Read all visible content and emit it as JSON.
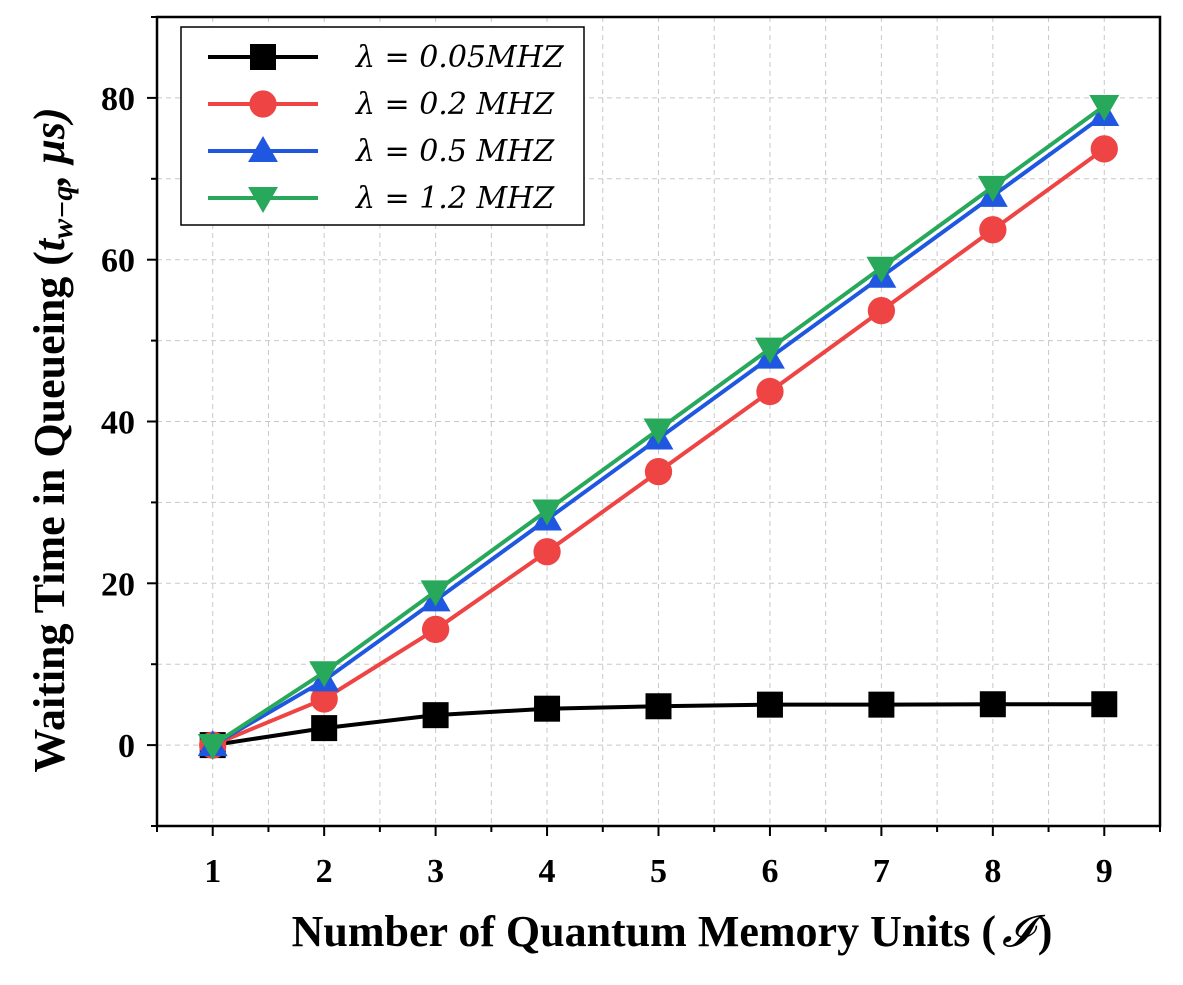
{
  "chart_data": {
    "type": "line",
    "xlabel": "Number of Quantum Memory Units (",
    "xlabel_symbol": "𝓘",
    "xlabel_close": ")",
    "ylabel": "Waiting Time in Queueing (",
    "ylabel_symbol": "t",
    "ylabel_subscript": "w−q",
    "ylabel_unit": ", μs)",
    "xlim": [
      0.5,
      9.5
    ],
    "ylim": [
      -10,
      90
    ],
    "x_ticks": [
      1,
      2,
      3,
      4,
      5,
      6,
      7,
      8,
      9
    ],
    "y_ticks": [
      0,
      20,
      40,
      60,
      80
    ],
    "grid": true,
    "legend_position": "top-left",
    "x": [
      1,
      2,
      3,
      4,
      5,
      6,
      7,
      8,
      9
    ],
    "series": [
      {
        "name": "λ = 0.05MHZ",
        "color": "#000000",
        "marker": "square",
        "values": [
          0,
          2.1,
          3.7,
          4.5,
          4.8,
          5.0,
          5.0,
          5.05,
          5.05
        ]
      },
      {
        "name": "λ = 0.2 MHZ",
        "color": "#ee4444",
        "marker": "circle",
        "values": [
          0,
          5.7,
          14.3,
          23.9,
          33.8,
          43.7,
          53.7,
          63.7,
          73.7
        ]
      },
      {
        "name": "λ = 0.5 MHZ",
        "color": "#1f57e0",
        "marker": "triangle-up",
        "values": [
          0,
          8.0,
          17.9,
          27.9,
          37.9,
          47.9,
          57.9,
          67.9,
          77.9
        ]
      },
      {
        "name": "λ = 1.2 MHZ",
        "color": "#27a85a",
        "marker": "triangle-down",
        "values": [
          0,
          9.0,
          19.0,
          29.0,
          39.0,
          49.0,
          59.0,
          69.0,
          79.0
        ]
      }
    ]
  }
}
